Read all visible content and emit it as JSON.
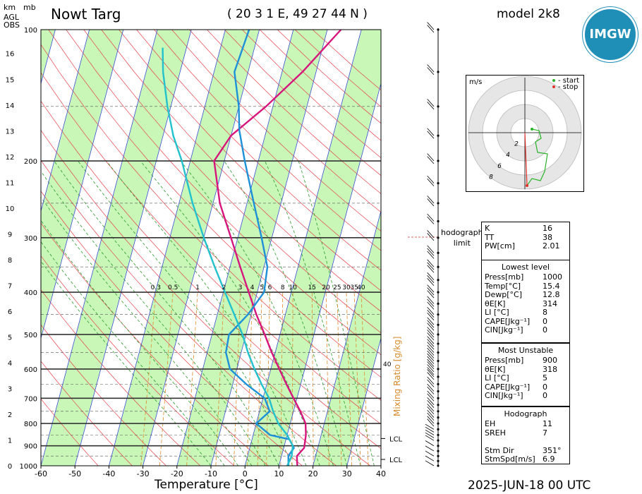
{
  "header": {
    "title": "Nowt Targ",
    "coords": "( 20 3 1 E, 49 27 44 N )",
    "model": "model 2k8",
    "date": "2025-JUN-18   00 UTC",
    "km": "km",
    "mb": "mb",
    "agl": "AGL",
    "obs": "OBS",
    "logo": "IMGW"
  },
  "chart_data": {
    "type": "line",
    "xlabel": "Temperature [°C]",
    "x_ticks": [
      -60,
      -50,
      -40,
      -30,
      -20,
      -10,
      0,
      10,
      20,
      30,
      40
    ],
    "xlim": [
      -60,
      40
    ],
    "pressure_ticks": [
      100,
      200,
      300,
      400,
      500,
      600,
      700,
      800,
      900,
      1000
    ],
    "height_ticks_km": [
      0,
      1,
      2,
      3,
      4,
      5,
      6,
      7,
      8,
      9,
      10,
      11,
      12,
      13,
      14,
      15,
      16
    ],
    "mixing_ratio_label": "Mixing Ratio [g/kg]",
    "mixing_ratio_ticks": [
      "0.3",
      "0.5",
      "1",
      "2",
      "3",
      "4",
      "5",
      "6",
      "8",
      "10",
      "15",
      "20",
      "25",
      "30",
      "35",
      "40"
    ],
    "lcl_labels": [
      "LCL",
      "LCL"
    ],
    "lcl_pressures": [
      967,
      866
    ],
    "series": [
      {
        "color": "#d6167c",
        "points": [
          [
            15.4,
            1000
          ],
          [
            14.5,
            950
          ],
          [
            16,
            910
          ],
          [
            15.5,
            850
          ],
          [
            14.5,
            800
          ],
          [
            12,
            750
          ],
          [
            9,
            700
          ],
          [
            5.8,
            650
          ],
          [
            2.5,
            600
          ],
          [
            -1,
            550
          ],
          [
            -4.5,
            500
          ],
          [
            -8.5,
            450
          ],
          [
            -12.5,
            400
          ],
          [
            -17,
            350
          ],
          [
            -22,
            300
          ],
          [
            -28,
            250
          ],
          [
            -33,
            200
          ],
          [
            -30,
            175
          ],
          [
            -22,
            150
          ],
          [
            -14,
            125
          ],
          [
            -6,
            100
          ]
        ]
      },
      {
        "color": "#1e90d8",
        "points": [
          [
            12.8,
            1000
          ],
          [
            12,
            950
          ],
          [
            13,
            910
          ],
          [
            11,
            870
          ],
          [
            5,
            850
          ],
          [
            0,
            800
          ],
          [
            3,
            750
          ],
          [
            0.5,
            700
          ],
          [
            -6,
            650
          ],
          [
            -12,
            600
          ],
          [
            -14.5,
            550
          ],
          [
            -15,
            500
          ],
          [
            -11,
            450
          ],
          [
            -8,
            400
          ],
          [
            -9,
            350
          ],
          [
            -13,
            300
          ],
          [
            -18,
            250
          ],
          [
            -24,
            200
          ],
          [
            -28,
            170
          ],
          [
            -30,
            150
          ],
          [
            -34,
            125
          ],
          [
            -33,
            100
          ]
        ]
      },
      {
        "color": "#22c1cc",
        "points": [
          [
            12.4,
            1000
          ],
          [
            13,
            950
          ],
          [
            12.5,
            900
          ],
          [
            10,
            850
          ],
          [
            6.5,
            800
          ],
          [
            4,
            750
          ],
          [
            1.8,
            700
          ],
          [
            -1.5,
            650
          ],
          [
            -4.8,
            600
          ],
          [
            -8,
            550
          ],
          [
            -11,
            500
          ],
          [
            -15,
            450
          ],
          [
            -19.5,
            400
          ],
          [
            -24.5,
            350
          ],
          [
            -30,
            300
          ],
          [
            -36,
            250
          ],
          [
            -42.5,
            200
          ],
          [
            -47,
            175
          ],
          [
            -51,
            150
          ],
          [
            -55,
            125
          ],
          [
            -57,
            110
          ]
        ]
      }
    ],
    "grid": true
  },
  "hodograph": {
    "unit": "m/s",
    "start": "- start",
    "stop": "- stop",
    "ring_labels": [
      "2",
      "4",
      "6",
      "8"
    ],
    "trace": [
      [
        1,
        0.5
      ],
      [
        2,
        0.3
      ],
      [
        2.3,
        -0.8
      ],
      [
        1.5,
        -1.3
      ],
      [
        1.8,
        -2.8
      ],
      [
        3.2,
        -3
      ],
      [
        2.8,
        -5.5
      ],
      [
        2.2,
        -6.8
      ],
      [
        1,
        -6.5
      ],
      [
        0.3,
        -7.5
      ]
    ],
    "stop_color": "#e0312a",
    "start_color": "#28b428"
  },
  "hodograph_limit": [
    "hodograph",
    "limit"
  ],
  "indices": {
    "rows": [
      [
        "K",
        "16"
      ],
      [
        "TT",
        "38"
      ],
      [
        "PW[cm]",
        "2.01"
      ]
    ]
  },
  "lowest_level": {
    "title": "Lowest level",
    "rows": [
      [
        "Press[mb]",
        "1000"
      ],
      [
        "Temp[°C]",
        "15.4"
      ],
      [
        "Dewp[°C]",
        "12.8"
      ],
      [
        "θE[K]",
        "314"
      ],
      [
        "LI [°C]",
        "8"
      ],
      [
        "CAPE[Jkg⁻¹]",
        "0"
      ],
      [
        "CIN[Jkg⁻¹]",
        "0"
      ]
    ]
  },
  "most_unstable": {
    "title": "Most Unstable",
    "rows": [
      [
        "Press[mb]",
        "900"
      ],
      [
        "θE[K]",
        "318"
      ],
      [
        "LI [°C]",
        "5"
      ],
      [
        "CAPE[Jkg⁻¹]",
        "0"
      ],
      [
        "CIN[Jkg⁻¹]",
        "0"
      ]
    ]
  },
  "hodograph_params": {
    "title": "Hodograph",
    "rows": [
      [
        "EH",
        "11"
      ],
      [
        "SREH",
        "7"
      ],
      [
        "",
        ""
      ],
      [
        "Stm Dir",
        "351°"
      ],
      [
        "StmSpd[m/s]",
        "6.9"
      ]
    ]
  },
  "colors": {
    "dry_adiabat": "#e8404a",
    "moist_adiabat": "#2a9a2a",
    "mixing_ratio": "#e08a2a",
    "isotherm": "#3a4fd6",
    "band": "#c8f7b8"
  }
}
